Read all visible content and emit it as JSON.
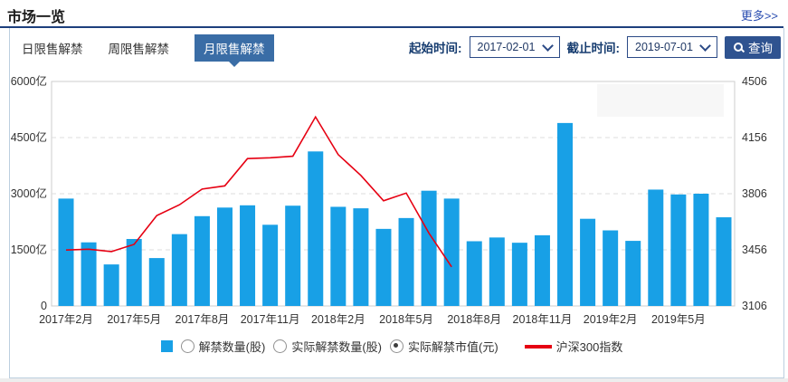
{
  "header": {
    "title": "市场一览",
    "more_label": "更多>>"
  },
  "tabs": [
    {
      "name": "tab-daily-unlock",
      "label": "日限售解禁",
      "selected": false
    },
    {
      "name": "tab-weekly-unlock",
      "label": "周限售解禁",
      "selected": false
    },
    {
      "name": "tab-monthly-unlock",
      "label": "月限售解禁",
      "selected": true
    }
  ],
  "filters": {
    "start_label": "起始时间:",
    "start_value": "2017-02-01",
    "end_label": "截止时间:",
    "end_value": "2019-07-01",
    "search_label": "查询"
  },
  "chart_data": {
    "type": "bar+line",
    "categories": [
      "2017年2月",
      "2017年3月",
      "2017年4月",
      "2017年5月",
      "2017年6月",
      "2017年7月",
      "2017年8月",
      "2017年9月",
      "2017年10月",
      "2017年11月",
      "2017年12月",
      "2018年1月",
      "2018年2月",
      "2018年3月",
      "2018年4月",
      "2018年5月",
      "2018年6月",
      "2018年7月",
      "2018年8月",
      "2018年9月",
      "2018年10月",
      "2018年11月",
      "2018年12月",
      "2019年1月",
      "2019年2月",
      "2019年3月",
      "2019年4月",
      "2019年5月",
      "2019年6月",
      "2019年7月"
    ],
    "x_tick_every": 3,
    "series": [
      {
        "name": "实际解禁市值(元)",
        "type": "bar",
        "axis": "left",
        "unit": "亿",
        "color": "#18a0e6",
        "values": [
          2870,
          1700,
          1110,
          1790,
          1280,
          1920,
          2400,
          2630,
          2690,
          2170,
          2680,
          4130,
          2650,
          2610,
          2060,
          2350,
          3080,
          2870,
          1730,
          1830,
          1690,
          1890,
          4890,
          2330,
          2020,
          1740,
          3110,
          2980,
          3000,
          2370
        ]
      },
      {
        "name": "沪深300指数",
        "type": "line",
        "axis": "right",
        "color": "#e60012",
        "values": [
          3455,
          3460,
          3445,
          3490,
          3670,
          3737,
          3835,
          3855,
          4025,
          4030,
          4040,
          4285,
          4050,
          3920,
          3762,
          3810,
          3560,
          3350,
          null,
          null,
          null,
          null,
          null,
          null,
          null,
          null,
          null,
          null,
          null,
          null
        ]
      }
    ],
    "left_axis": {
      "min": 0,
      "max": 6000,
      "tick_values": [
        0,
        1500,
        3000,
        4500,
        6000
      ],
      "tick_labels": [
        "0",
        "1500亿",
        "3000亿",
        "4500亿",
        "6000亿"
      ]
    },
    "right_axis": {
      "min": 3106,
      "max": 4506,
      "tick_values": [
        3106,
        3456,
        3806,
        4156,
        4506
      ],
      "tick_labels": [
        "3106",
        "3456",
        "3806",
        "4156",
        "4506"
      ]
    },
    "grid": "horizontal-dashed",
    "legend_position": "bottom"
  },
  "legend": {
    "items": [
      {
        "kind": "bar-swatch",
        "name": "bar-series-swatch"
      },
      {
        "kind": "radio",
        "checked": false,
        "label": "解禁数量(股)",
        "name": "radio-unlock-count"
      },
      {
        "kind": "radio",
        "checked": false,
        "label": "实际解禁数量(股)",
        "name": "radio-actual-unlock-count"
      },
      {
        "kind": "radio",
        "checked": true,
        "label": "实际解禁市值(元)",
        "name": "radio-actual-unlock-value"
      },
      {
        "kind": "line-swatch",
        "label": "沪深300指数",
        "name": "csi300-index-legend"
      }
    ]
  }
}
